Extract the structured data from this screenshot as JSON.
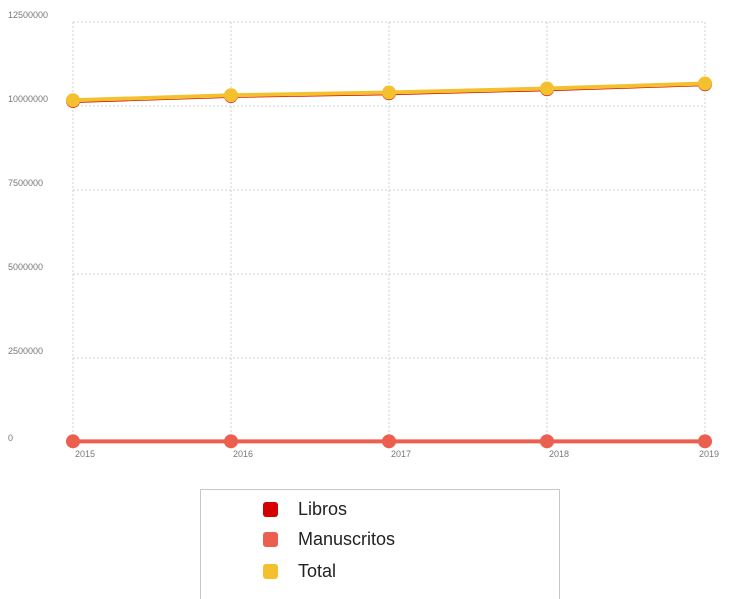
{
  "chart_data": {
    "type": "line",
    "title": "",
    "xlabel": "",
    "ylabel": "",
    "x": [
      "2015",
      "2016",
      "2017",
      "2018",
      "2019"
    ],
    "ylim": [
      0,
      12500000
    ],
    "yticks": [
      0,
      2500000,
      5000000,
      7500000,
      10000000,
      12500000
    ],
    "ytick_labels": [
      "0",
      "2500000",
      "5000000",
      "7500000",
      "10000000",
      "12500000"
    ],
    "grid": true,
    "legend_position": "bottom-center",
    "series": [
      {
        "name": "Libros",
        "color": "#d50000",
        "values": [
          10150000,
          10300000,
          10380000,
          10500000,
          10650000
        ]
      },
      {
        "name": "Manuscritos",
        "color": "#ec5f4f",
        "values": [
          20000,
          20000,
          20000,
          20000,
          20000
        ]
      },
      {
        "name": "Total",
        "color": "#f4c12e",
        "values": [
          10170000,
          10320000,
          10400000,
          10520000,
          10670000
        ]
      }
    ]
  },
  "legend": {
    "items": [
      {
        "label": "Libros",
        "color": "#d50000"
      },
      {
        "label": "Manuscritos",
        "color": "#ec5f4f"
      },
      {
        "label": "Total",
        "color": "#f4c12e"
      }
    ]
  }
}
